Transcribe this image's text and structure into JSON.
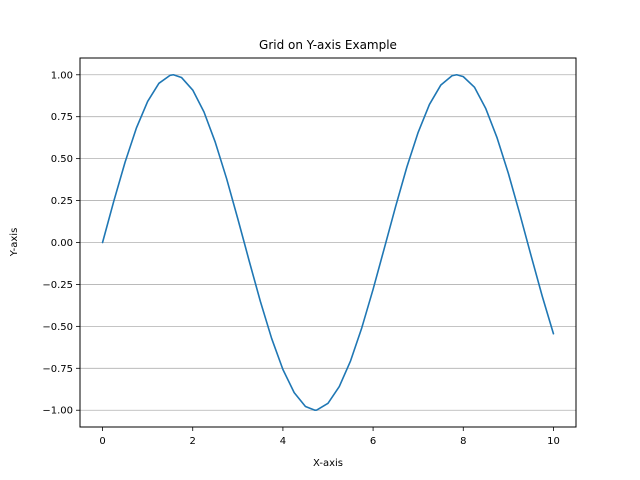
{
  "chart_data": {
    "type": "line",
    "title": "Grid on Y-axis Example",
    "xlabel": "X-axis",
    "ylabel": "Y-axis",
    "xlim": [
      -0.5,
      10.5
    ],
    "ylim": [
      -1.1,
      1.1
    ],
    "x_ticks": [
      0,
      2,
      4,
      6,
      8,
      10
    ],
    "x_tick_labels": [
      "0",
      "2",
      "4",
      "6",
      "8",
      "10"
    ],
    "y_ticks": [
      -1.0,
      -0.75,
      -0.5,
      -0.25,
      0.0,
      0.25,
      0.5,
      0.75,
      1.0
    ],
    "y_tick_labels": [
      "−1.00",
      "−0.75",
      "−0.50",
      "−0.25",
      "0.00",
      "0.25",
      "0.50",
      "0.75",
      "1.00"
    ],
    "grid": "y-axis only",
    "legend": "none",
    "series": [
      {
        "color": "#1f77b4",
        "x": [
          0,
          0.25,
          0.5,
          0.75,
          1,
          1.25,
          1.5,
          1.571,
          1.75,
          2,
          2.25,
          2.5,
          2.75,
          3,
          3.142,
          3.25,
          3.5,
          3.75,
          4,
          4.25,
          4.5,
          4.712,
          4.75,
          5,
          5.25,
          5.5,
          5.75,
          6,
          6.25,
          6.5,
          6.75,
          7,
          7.25,
          7.5,
          7.75,
          7.854,
          8,
          8.25,
          8.5,
          8.75,
          9,
          9.25,
          9.5,
          9.75,
          10
        ],
        "y": [
          0,
          0.247,
          0.479,
          0.682,
          0.841,
          0.949,
          0.997,
          1.0,
          0.984,
          0.909,
          0.778,
          0.598,
          0.382,
          0.141,
          0.0,
          -0.108,
          -0.351,
          -0.572,
          -0.757,
          -0.895,
          -0.978,
          -1.0,
          -0.999,
          -0.959,
          -0.859,
          -0.706,
          -0.508,
          -0.279,
          -0.033,
          0.215,
          0.451,
          0.657,
          0.823,
          0.938,
          0.994,
          1.0,
          0.989,
          0.925,
          0.798,
          0.624,
          0.412,
          0.174,
          -0.075,
          -0.319,
          -0.544
        ]
      }
    ]
  }
}
